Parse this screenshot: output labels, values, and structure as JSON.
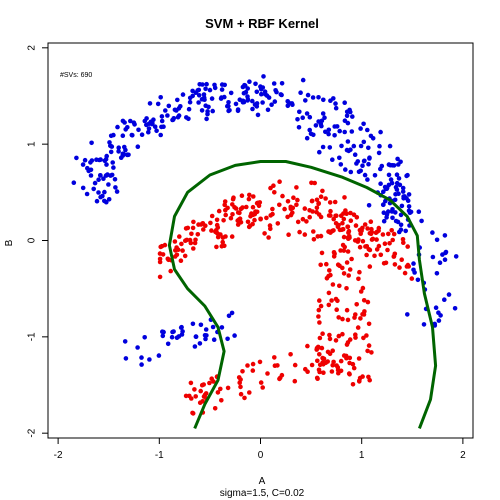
{
  "chart_data": {
    "type": "scatter",
    "title": "SVM + RBF Kernel",
    "xlabel": "A",
    "ylabel": "B",
    "sub": "sigma=1.5, C=0.02",
    "annotation": "#SVs: 690",
    "xlim": [
      -2.1,
      2.1
    ],
    "ylim": [
      -2.05,
      2.05
    ],
    "xticks": [
      -2,
      -1,
      0,
      1,
      2
    ],
    "yticks": [
      -2,
      -1,
      0,
      1,
      2
    ],
    "grid": false,
    "series": [
      {
        "color": "#0000dd",
        "shape": "outer crescent",
        "extent": {
          "x": [
            -1.95,
            1.95
          ],
          "y": [
            -1.4,
            1.9
          ]
        }
      },
      {
        "color": "#ee0000",
        "shape": "inner crescent",
        "extent": {
          "x": [
            -1.05,
            1.55
          ],
          "y": [
            -1.9,
            0.65
          ]
        }
      }
    ],
    "boundary": {
      "color": "#006400",
      "points": [
        [
          -0.65,
          -1.95
        ],
        [
          -0.55,
          -1.7
        ],
        [
          -0.42,
          -1.45
        ],
        [
          -0.36,
          -1.15
        ],
        [
          -0.42,
          -0.9
        ],
        [
          -0.55,
          -0.68
        ],
        [
          -0.72,
          -0.5
        ],
        [
          -0.85,
          -0.3
        ],
        [
          -0.9,
          -0.05
        ],
        [
          -0.85,
          0.25
        ],
        [
          -0.72,
          0.5
        ],
        [
          -0.5,
          0.68
        ],
        [
          -0.25,
          0.78
        ],
        [
          0.0,
          0.82
        ],
        [
          0.25,
          0.82
        ],
        [
          0.5,
          0.76
        ],
        [
          0.8,
          0.66
        ],
        [
          1.05,
          0.55
        ],
        [
          1.28,
          0.42
        ],
        [
          1.45,
          0.25
        ],
        [
          1.55,
          0.05
        ],
        [
          1.57,
          -0.2
        ],
        [
          1.62,
          -0.55
        ],
        [
          1.7,
          -0.9
        ],
        [
          1.73,
          -1.3
        ],
        [
          1.68,
          -1.65
        ],
        [
          1.57,
          -1.95
        ]
      ]
    }
  }
}
